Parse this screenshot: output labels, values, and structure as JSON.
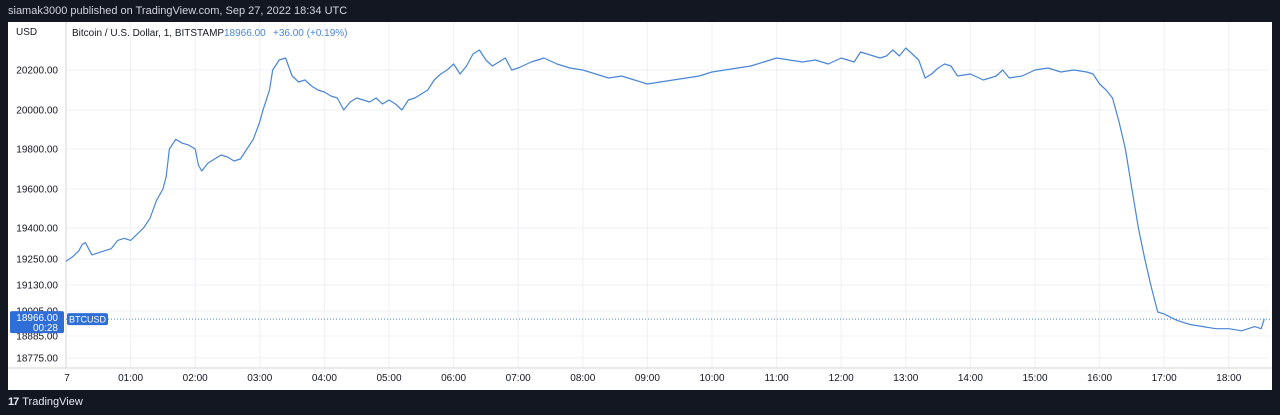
{
  "header": {
    "publisher_text": "siamak3000 published on TradingView.com, Sep 27, 2022 18:34 UTC"
  },
  "footer": {
    "logo_text": "TradingView",
    "logo_mark": "17"
  },
  "legend": {
    "title": "Bitcoin / U.S. Dollar, 1, BITSTAMP",
    "last": "18966.00",
    "change": "+36.00 (+0.19%)"
  },
  "price_tag": {
    "price": "18966.00",
    "countdown": "00:28",
    "symbol": "BTCUSD"
  },
  "colors": {
    "line": "#4a86d6",
    "tag_bg": "#2f6ed6",
    "text": "#131722",
    "up": "#4a86d6"
  },
  "chart_data": {
    "type": "line",
    "title": "Bitcoin / U.S. Dollar, 1, BITSTAMP",
    "currency_label": "USD",
    "y_ticks": [
      {
        "label": "20200.00",
        "value": 20200
      },
      {
        "label": "20000.00",
        "value": 20000
      },
      {
        "label": "19800.00",
        "value": 19800
      },
      {
        "label": "19600.00",
        "value": 19600
      },
      {
        "label": "19400.00",
        "value": 19400
      },
      {
        "label": "19250.00",
        "value": 19250
      },
      {
        "label": "19130.00",
        "value": 19130
      },
      {
        "label": "19005.00",
        "value": 19005
      },
      {
        "label": "18885.00",
        "value": 18885
      },
      {
        "label": "18775.00",
        "value": 18775
      }
    ],
    "x_ticks": [
      {
        "label": "7",
        "hour": 0.0
      },
      {
        "label": "01:00",
        "hour": 1.0
      },
      {
        "label": "02:00",
        "hour": 2.0
      },
      {
        "label": "03:00",
        "hour": 3.0
      },
      {
        "label": "04:00",
        "hour": 4.0
      },
      {
        "label": "05:00",
        "hour": 5.0
      },
      {
        "label": "06:00",
        "hour": 6.0
      },
      {
        "label": "07:00",
        "hour": 7.0
      },
      {
        "label": "08:00",
        "hour": 8.0
      },
      {
        "label": "09:00",
        "hour": 9.0
      },
      {
        "label": "10:00",
        "hour": 10.0
      },
      {
        "label": "11:00",
        "hour": 11.0
      },
      {
        "label": "12:00",
        "hour": 12.0
      },
      {
        "label": "13:00",
        "hour": 13.0
      },
      {
        "label": "14:00",
        "hour": 14.0
      },
      {
        "label": "15:00",
        "hour": 15.0
      },
      {
        "label": "16:00",
        "hour": 16.0
      },
      {
        "label": "17:00",
        "hour": 17.0
      },
      {
        "label": "18:00",
        "hour": 18.0
      }
    ],
    "x_range": [
      0.0,
      18.55
    ],
    "series": [
      {
        "x": [
          0.0,
          0.1,
          0.2,
          0.25,
          0.3,
          0.35,
          0.4,
          0.5,
          0.6,
          0.7,
          0.8,
          0.9,
          1.0,
          1.1,
          1.2,
          1.3,
          1.4,
          1.5,
          1.55,
          1.6,
          1.7,
          1.8,
          1.9,
          2.0,
          2.05,
          2.1,
          2.2,
          2.3,
          2.4,
          2.5,
          2.6,
          2.7,
          2.8,
          2.9,
          3.0,
          3.05,
          3.1,
          3.15,
          3.2,
          3.3,
          3.4,
          3.5,
          3.6,
          3.7,
          3.8,
          3.9,
          4.0,
          4.1,
          4.2,
          4.3,
          4.4,
          4.5,
          4.6,
          4.7,
          4.8,
          4.9,
          5.0,
          5.1,
          5.2,
          5.3,
          5.4,
          5.5,
          5.6,
          5.7,
          5.8,
          5.9,
          6.0,
          6.1,
          6.2,
          6.3,
          6.4,
          6.5,
          6.6,
          6.7,
          6.8,
          6.9,
          7.0,
          7.2,
          7.4,
          7.6,
          7.8,
          8.0,
          8.2,
          8.4,
          8.6,
          8.8,
          9.0,
          9.2,
          9.4,
          9.6,
          9.8,
          10.0,
          10.2,
          10.4,
          10.6,
          10.8,
          11.0,
          11.2,
          11.4,
          11.6,
          11.8,
          12.0,
          12.2,
          12.3,
          12.4,
          12.6,
          12.7,
          12.8,
          12.9,
          13.0,
          13.1,
          13.2,
          13.3,
          13.4,
          13.5,
          13.6,
          13.7,
          13.8,
          14.0,
          14.2,
          14.4,
          14.5,
          14.6,
          14.8,
          15.0,
          15.2,
          15.4,
          15.6,
          15.8,
          15.9,
          16.0,
          16.1,
          16.2,
          16.3,
          16.4,
          16.5,
          16.6,
          16.7,
          16.8,
          16.9,
          17.0,
          17.2,
          17.4,
          17.6,
          17.8,
          18.0,
          18.2,
          18.4,
          18.5,
          18.55
        ],
        "y": [
          19240,
          19260,
          19290,
          19320,
          19330,
          19300,
          19270,
          19280,
          19290,
          19300,
          19340,
          19350,
          19340,
          19370,
          19400,
          19450,
          19540,
          19600,
          19660,
          19800,
          19850,
          19830,
          19820,
          19800,
          19720,
          19690,
          19730,
          19750,
          19770,
          19760,
          19740,
          19750,
          19800,
          19850,
          19940,
          20000,
          20050,
          20100,
          20200,
          20250,
          20260,
          20170,
          20140,
          20150,
          20120,
          20100,
          20090,
          20070,
          20060,
          20000,
          20040,
          20060,
          20050,
          20040,
          20060,
          20030,
          20050,
          20030,
          20000,
          20050,
          20060,
          20080,
          20100,
          20150,
          20180,
          20200,
          20230,
          20180,
          20220,
          20280,
          20300,
          20250,
          20220,
          20240,
          20260,
          20200,
          20210,
          20240,
          20260,
          20230,
          20210,
          20200,
          20180,
          20160,
          20170,
          20150,
          20130,
          20140,
          20150,
          20160,
          20170,
          20190,
          20200,
          20210,
          20220,
          20240,
          20260,
          20250,
          20240,
          20250,
          20230,
          20260,
          20240,
          20290,
          20280,
          20260,
          20270,
          20300,
          20270,
          20310,
          20280,
          20250,
          20160,
          20180,
          20210,
          20230,
          20220,
          20170,
          20180,
          20150,
          20170,
          20200,
          20160,
          20170,
          20200,
          20210,
          20190,
          20200,
          20190,
          20180,
          20130,
          20100,
          20060,
          19940,
          19800,
          19600,
          19400,
          19250,
          19120,
          19000,
          18990,
          18960,
          18940,
          18930,
          18920,
          18920,
          18910,
          18930,
          18920,
          18966
        ]
      }
    ],
    "grid": true,
    "legend_position": "top-left"
  }
}
